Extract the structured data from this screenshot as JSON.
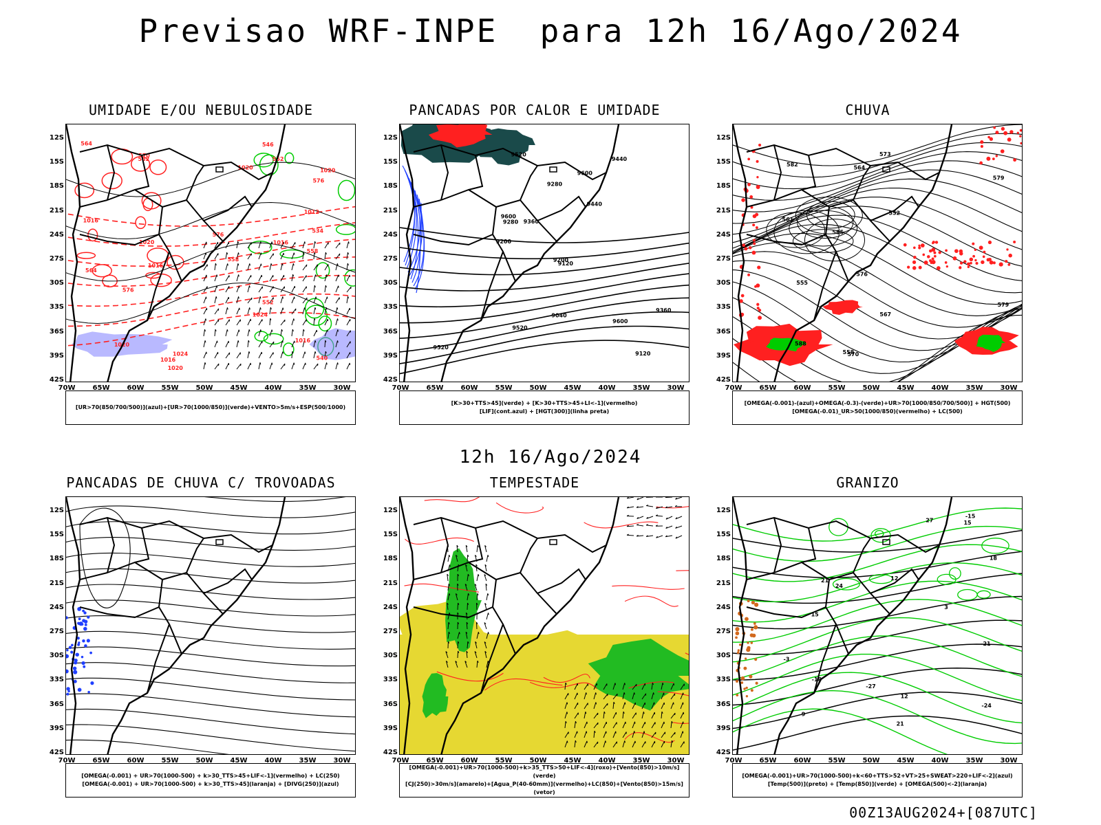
{
  "title": "Previsao WRF-INPE  para 12h 16/Ago/2024",
  "mid_title": "12h 16/Ago/2024",
  "footer": "00Z13AUG2024+[087UTC]",
  "axes": {
    "lat_labels": [
      "12S",
      "15S",
      "18S",
      "21S",
      "24S",
      "27S",
      "30S",
      "33S",
      "36S",
      "39S",
      "42S"
    ],
    "lon_labels": [
      "70W",
      "65W",
      "60W",
      "55W",
      "50W",
      "45W",
      "40W",
      "35W",
      "30W"
    ]
  },
  "colors": {
    "red": "#ff2020",
    "green": "#00cc00",
    "blue": "#2040ff",
    "yellow": "#e6d832",
    "teal": "#1a4a4a",
    "purple": "#8080ff"
  },
  "panels": [
    {
      "id": "umidade",
      "title": "UMIDADE E/OU NEBULOSIDADE",
      "legend": [
        "[UR>70(850/700/500)](azul)+[UR>70(1000/850)](verde)+VENTO>5m/s+ESP(500/1000)"
      ],
      "labels": [
        "576",
        "576",
        "570",
        "1016",
        "1020",
        "1016",
        "1020",
        "1016",
        "1012",
        "1016",
        "1020",
        "1024",
        "1020",
        "564",
        "558",
        "552",
        "546",
        "540",
        "534",
        "552",
        "1016",
        "1020",
        "1024",
        "582",
        "576",
        "564",
        "558"
      ]
    },
    {
      "id": "pancadas-calor",
      "title": "PANCADAS POR CALOR E UMIDADE",
      "legend": [
        "[K>30+TTS>45](verde) + [K>30+TTS>45+LI<-1](vermelho)",
        "[LIF](cont.azul) + [HGT(300)](linha preta)"
      ],
      "labels": [
        "9600",
        "9600",
        "9520",
        "9440",
        "9360",
        "9280",
        "9200",
        "9120",
        "9040",
        "9600",
        "9520",
        "9440",
        "9360",
        "9280",
        "9200",
        "9120",
        "9520"
      ]
    },
    {
      "id": "chuva",
      "title": "CHUVA",
      "legend": [
        "[OMEGA(-0.001)-(azul)+OMEGA(-0.3)-(verde)+UR>70(1000/850/700/500)] + HGT(500)",
        "[OMEGA(-0.01)_UR>50(1000/850)(vermelho) + LC(500)"
      ],
      "labels": [
        "582",
        "579",
        "576",
        "573",
        "570",
        "567",
        "564",
        "561",
        "558",
        "555",
        "552",
        "585",
        "588",
        "579"
      ]
    },
    {
      "id": "trovoadas",
      "title": "PANCADAS DE CHUVA C/ TROVOADAS",
      "legend": [
        "[OMEGA(-0.001) + UR>70(1000-500) + k>30_TTS>45+LIF<-1](vermelho) + LC(250)",
        "[OMEGA(-0.001) + UR>70(1000-500) + k>30_TTS>45](laranja) + [DIVG(250)](azul)"
      ],
      "labels": []
    },
    {
      "id": "tempestade",
      "title": "TEMPESTADE",
      "legend": [
        "[OMEGA(-0.001)+UR>70(1000-500)+k>35_TTS>50+LIF<-4](roxo)+[Vento(850)>10m/s](verde)",
        "[CJ(250)>30m/s](amarelo)+[Agua_P(40-60mm)](vermelho)+LC(850)+[Vento(850)>15m/s](vetor)"
      ],
      "labels": []
    },
    {
      "id": "granizo",
      "title": "GRANIZO",
      "legend": [
        "[OMEGA(-0.001)+UR>70(1000-500)+k<60+TTS>52+VT>25+SWEAT>220+LIF<-2](azul)",
        "[Temp(500)](preto) + [Temp(850)](verde) + [OMEGA(500)<-2](laranja)"
      ],
      "labels": [
        "12",
        "15",
        "18",
        "21",
        "24",
        "27",
        "-3",
        "3",
        "9",
        "12",
        "15",
        "-15",
        "-18",
        "-21",
        "-24",
        "-27",
        "21"
      ]
    }
  ],
  "chart_data": [
    {
      "type": "map",
      "title": "UMIDADE E/OU NEBULOSIDADE",
      "lat_range": [
        "12S",
        "42S"
      ],
      "lon_range": [
        "70W",
        "30W"
      ],
      "fields": [
        "UR>70 (850/700/500) azul",
        "UR>70 (1000/850) verde",
        "VENTO>5m/s",
        "ESP(500/1000) dashed red",
        "PNMM contours black"
      ],
      "contour_values": {
        "thickness": [
          534,
          540,
          546,
          552,
          558,
          564,
          570,
          576,
          582
        ],
        "pressure": [
          1012,
          1016,
          1020,
          1024
        ]
      }
    },
    {
      "type": "map",
      "title": "PANCADAS POR CALOR E UMIDADE",
      "lat_range": [
        "12S",
        "42S"
      ],
      "lon_range": [
        "70W",
        "30W"
      ],
      "fields": [
        "K>30+TTS>45 verde",
        "K>30+TTS>45+LI<-1 vermelho",
        "LIF cont. azul",
        "HGT(300) linha preta"
      ],
      "contour_values": {
        "hgt300": [
          9040,
          9120,
          9200,
          9280,
          9360,
          9440,
          9520,
          9600
        ]
      }
    },
    {
      "type": "map",
      "title": "CHUVA",
      "lat_range": [
        "12S",
        "42S"
      ],
      "lon_range": [
        "70W",
        "30W"
      ],
      "fields": [
        "OMEGA azul",
        "OMEGA verde",
        "UR vermelho",
        "HGT(500)",
        "LC(500)"
      ],
      "contour_values": {
        "hgt500": [
          552,
          555,
          558,
          561,
          564,
          567,
          570,
          573,
          576,
          579,
          582,
          585,
          588
        ]
      }
    },
    {
      "type": "map",
      "title": "PANCADAS DE CHUVA C/ TROVOADAS",
      "lat_range": [
        "12S",
        "42S"
      ],
      "lon_range": [
        "70W",
        "30W"
      ],
      "fields": [
        "vermelho",
        "laranja",
        "DIVG(250) azul",
        "LC(250) streamlines"
      ]
    },
    {
      "type": "map",
      "title": "TEMPESTADE",
      "lat_range": [
        "12S",
        "42S"
      ],
      "lon_range": [
        "70W",
        "30W"
      ],
      "fields": [
        "roxo",
        "Vento(850)>10m/s verde",
        "CJ(250)>30m/s amarelo",
        "Agua_P vermelho",
        "LC(850)",
        "Vento(850)>15m/s vetor"
      ]
    },
    {
      "type": "map",
      "title": "GRANIZO",
      "lat_range": [
        "12S",
        "42S"
      ],
      "lon_range": [
        "70W",
        "30W"
      ],
      "fields": [
        "azul",
        "Temp(500) preto",
        "Temp(850) verde",
        "OMEGA(500)<-2 laranja"
      ],
      "contour_values": {
        "temp500": [
          -27,
          -24,
          -21,
          -18,
          -15
        ],
        "temp850": [
          3,
          9,
          12,
          15,
          18,
          21,
          24,
          27
        ]
      }
    }
  ]
}
